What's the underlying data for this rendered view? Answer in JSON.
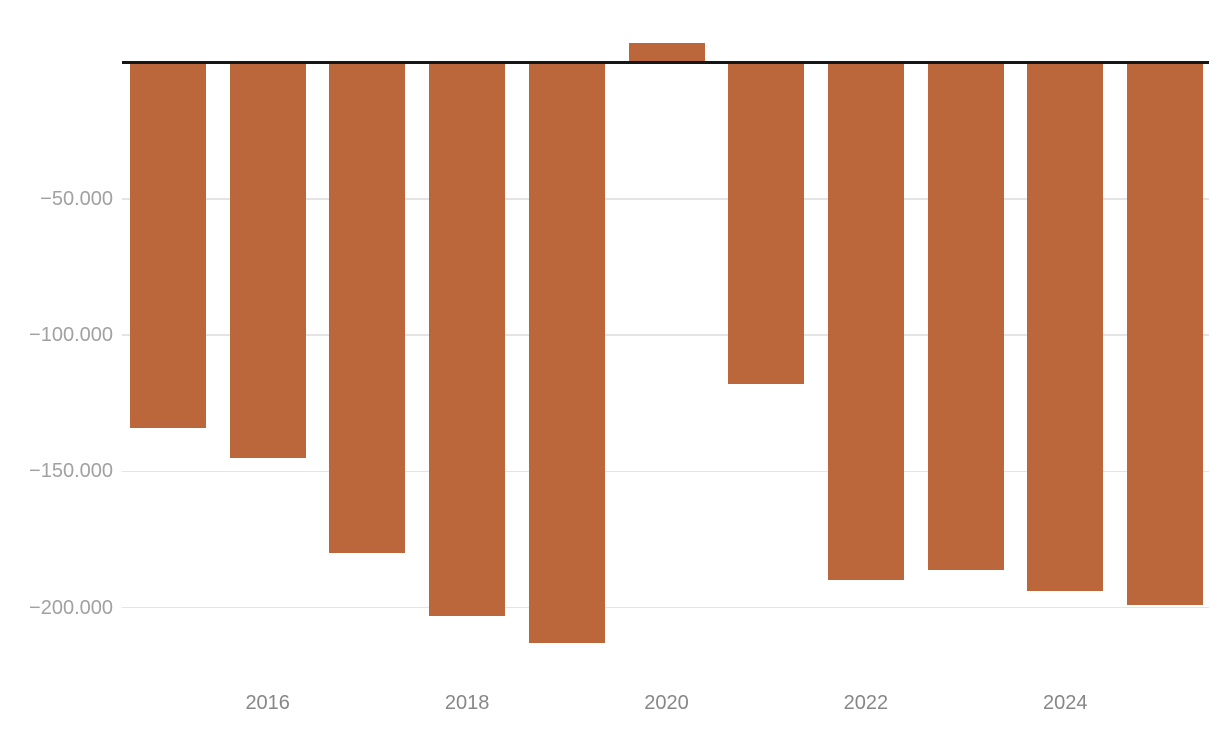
{
  "chart_data": {
    "type": "bar",
    "title": "",
    "subtitle": "",
    "xlabel": "",
    "ylabel": "",
    "categories": [
      2015,
      2016,
      2017,
      2018,
      2019,
      2020,
      2021,
      2022,
      2023,
      2024,
      2025
    ],
    "values": [
      -134000,
      -145000,
      -180000,
      -203000,
      -213000,
      7000,
      -118000,
      -190000,
      -186000,
      -194000,
      -199000
    ],
    "series_name": "annual-balance",
    "bar_color": "#bc663c",
    "y_axis": {
      "range": [
        -223000,
        23000
      ],
      "grid": true,
      "zero_line": true,
      "number_format": "thousands-dot-separator",
      "ticks": [
        {
          "value": -50000,
          "label": "−50.000"
        },
        {
          "value": -100000,
          "label": "−100.000"
        },
        {
          "value": -150000,
          "label": "−150.000"
        },
        {
          "value": -200000,
          "label": "−200.000"
        }
      ]
    },
    "x_axis": {
      "ticks": [
        {
          "value": 2016,
          "label": "2016"
        },
        {
          "value": 2018,
          "label": "2018"
        },
        {
          "value": 2020,
          "label": "2020"
        },
        {
          "value": 2022,
          "label": "2022"
        },
        {
          "value": 2024,
          "label": "2024"
        }
      ]
    },
    "legend": "none"
  },
  "colors": {
    "bar": "#bc663c",
    "zero_line": "#161616",
    "gridline": "#e4e4e4",
    "y_tick_label": "#a1a1a1",
    "x_tick_label": "#878787",
    "background": "#ffffff"
  }
}
